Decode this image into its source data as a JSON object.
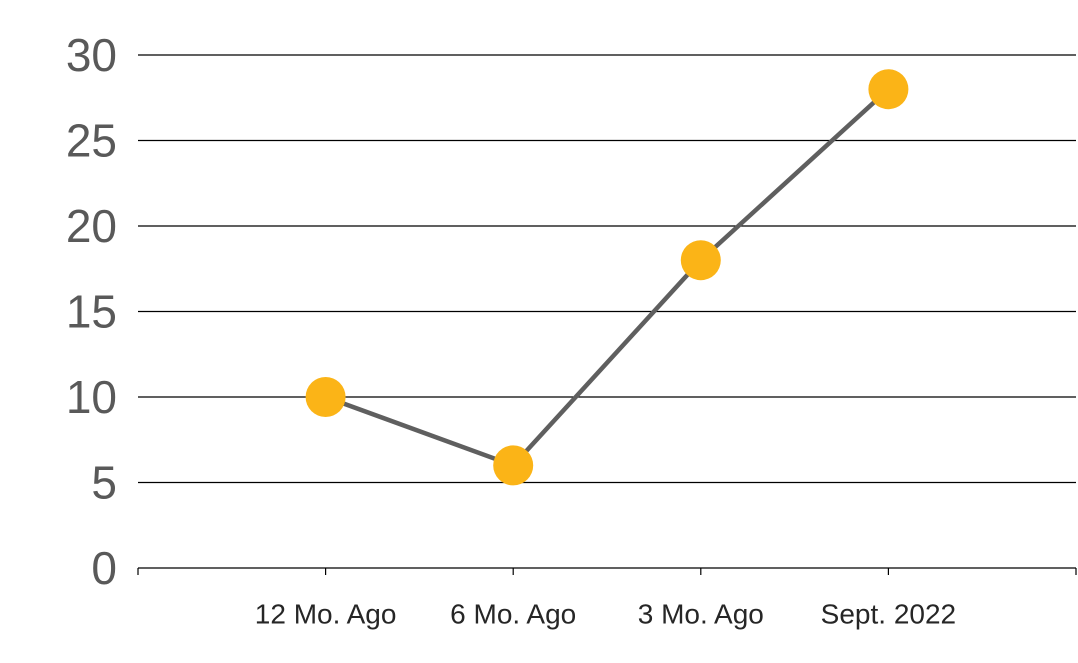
{
  "chart_data": {
    "type": "line",
    "categories": [
      "12 Mo. Ago",
      "6 Mo. Ago",
      "3 Mo. Ago",
      "Sept. 2022"
    ],
    "series": [
      {
        "values": [
          10,
          6,
          18,
          28
        ]
      }
    ],
    "title": "",
    "xlabel": "",
    "ylabel": "",
    "ylim": [
      0,
      30
    ],
    "yticks": [
      0,
      5,
      10,
      15,
      20,
      25,
      30
    ],
    "grid": true,
    "legend": "none",
    "colors": {
      "line": "#5f5f5f",
      "marker": "#fbb417"
    }
  }
}
